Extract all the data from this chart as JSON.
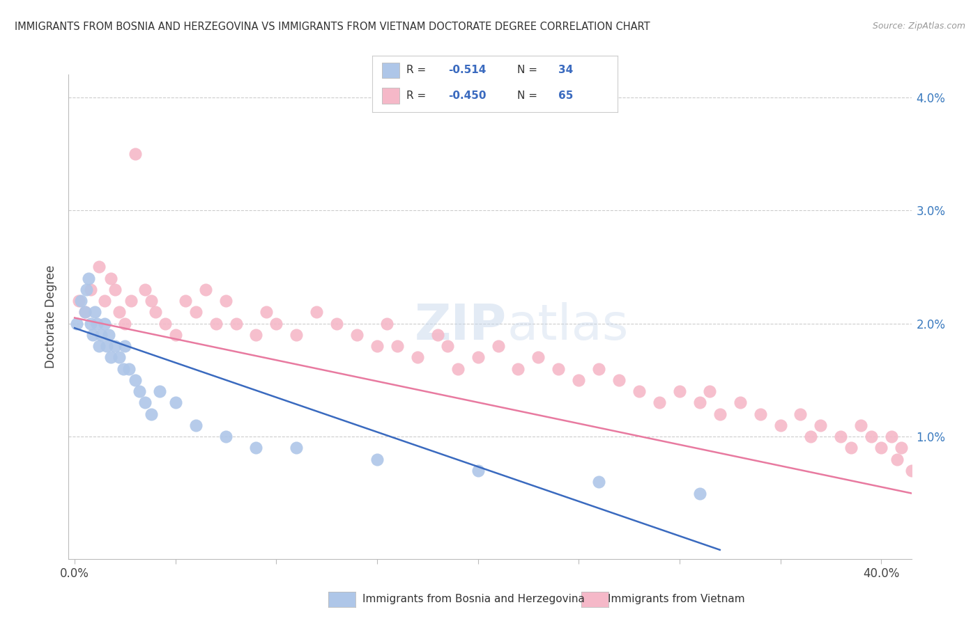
{
  "title": "IMMIGRANTS FROM BOSNIA AND HERZEGOVINA VS IMMIGRANTS FROM VIETNAM DOCTORATE DEGREE CORRELATION CHART",
  "source": "Source: ZipAtlas.com",
  "ylabel": "Doctorate Degree",
  "bosnia_R": -0.514,
  "bosnia_N": 34,
  "vietnam_R": -0.45,
  "vietnam_N": 65,
  "bosnia_color": "#aec6e8",
  "vietnam_color": "#f5b8c8",
  "bosnia_line_color": "#3a6abf",
  "vietnam_line_color": "#e87aa0",
  "background_color": "#ffffff",
  "legend_label_1": "Immigrants from Bosnia and Herzegovina",
  "legend_label_2": "Immigrants from Vietnam",
  "xlim": [
    -0.003,
    0.415
  ],
  "ylim": [
    -0.0008,
    0.042
  ],
  "yticks": [
    0.0,
    0.01,
    0.02,
    0.03,
    0.04
  ],
  "xticks": [
    0.0,
    0.05,
    0.1,
    0.15,
    0.2,
    0.25,
    0.3,
    0.35,
    0.4
  ],
  "bosnia_x": [
    0.001,
    0.003,
    0.005,
    0.006,
    0.007,
    0.008,
    0.009,
    0.01,
    0.011,
    0.012,
    0.013,
    0.015,
    0.016,
    0.017,
    0.018,
    0.02,
    0.022,
    0.024,
    0.025,
    0.027,
    0.03,
    0.032,
    0.035,
    0.038,
    0.042,
    0.05,
    0.06,
    0.075,
    0.09,
    0.11,
    0.15,
    0.2,
    0.26,
    0.31
  ],
  "bosnia_y": [
    0.02,
    0.022,
    0.021,
    0.023,
    0.024,
    0.02,
    0.019,
    0.021,
    0.02,
    0.018,
    0.019,
    0.02,
    0.018,
    0.019,
    0.017,
    0.018,
    0.017,
    0.016,
    0.018,
    0.016,
    0.015,
    0.014,
    0.013,
    0.012,
    0.014,
    0.013,
    0.011,
    0.01,
    0.009,
    0.009,
    0.008,
    0.007,
    0.006,
    0.005
  ],
  "vietnam_x": [
    0.002,
    0.005,
    0.008,
    0.012,
    0.015,
    0.018,
    0.02,
    0.022,
    0.025,
    0.028,
    0.03,
    0.035,
    0.038,
    0.04,
    0.045,
    0.05,
    0.055,
    0.06,
    0.065,
    0.07,
    0.075,
    0.08,
    0.09,
    0.095,
    0.1,
    0.11,
    0.12,
    0.13,
    0.14,
    0.15,
    0.155,
    0.16,
    0.17,
    0.18,
    0.185,
    0.19,
    0.2,
    0.21,
    0.22,
    0.23,
    0.24,
    0.25,
    0.26,
    0.27,
    0.28,
    0.29,
    0.3,
    0.31,
    0.315,
    0.32,
    0.33,
    0.34,
    0.35,
    0.36,
    0.365,
    0.37,
    0.38,
    0.385,
    0.39,
    0.395,
    0.4,
    0.405,
    0.408,
    0.41,
    0.415
  ],
  "vietnam_y": [
    0.022,
    0.021,
    0.023,
    0.025,
    0.022,
    0.024,
    0.023,
    0.021,
    0.02,
    0.022,
    0.035,
    0.023,
    0.022,
    0.021,
    0.02,
    0.019,
    0.022,
    0.021,
    0.023,
    0.02,
    0.022,
    0.02,
    0.019,
    0.021,
    0.02,
    0.019,
    0.021,
    0.02,
    0.019,
    0.018,
    0.02,
    0.018,
    0.017,
    0.019,
    0.018,
    0.016,
    0.017,
    0.018,
    0.016,
    0.017,
    0.016,
    0.015,
    0.016,
    0.015,
    0.014,
    0.013,
    0.014,
    0.013,
    0.014,
    0.012,
    0.013,
    0.012,
    0.011,
    0.012,
    0.01,
    0.011,
    0.01,
    0.009,
    0.011,
    0.01,
    0.009,
    0.01,
    0.008,
    0.009,
    0.007
  ],
  "bos_line_x0": 0.0,
  "bos_line_y0": 0.0196,
  "bos_line_x1": 0.32,
  "bos_line_y1": 0.0,
  "viet_line_x0": 0.0,
  "viet_line_y0": 0.0205,
  "viet_line_x1": 0.415,
  "viet_line_y1": 0.005
}
